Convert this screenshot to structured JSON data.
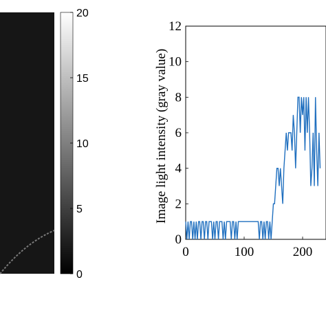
{
  "chart_data": [
    {
      "type": "heatmap",
      "colorbar": {
        "ticks": [
          "20",
          "15",
          "10",
          "5",
          "0"
        ],
        "tick_values": [
          20,
          15,
          10,
          5,
          0
        ],
        "range": [
          0,
          20
        ],
        "colormap": "gray"
      },
      "background_color": "#161616"
    },
    {
      "type": "line",
      "ylabel": "Image light intensity (gray value)",
      "xlabel": "",
      "xlim": [
        0,
        260
      ],
      "ylim": [
        0,
        12
      ],
      "x_ticks": [
        "0",
        "100",
        "200"
      ],
      "x_tick_values": [
        0,
        100,
        200
      ],
      "y_ticks": [
        "0",
        "2",
        "4",
        "6",
        "8",
        "10",
        "12"
      ],
      "y_tick_values": [
        0,
        2,
        4,
        6,
        8,
        10,
        12
      ],
      "line_color": "#1f6fbf",
      "series": [
        {
          "x": [
            0,
            2,
            4,
            6,
            8,
            10,
            12,
            14,
            16,
            18,
            20,
            22,
            24,
            26,
            28,
            30,
            32,
            34,
            36,
            38,
            40,
            42,
            44,
            46,
            48,
            50,
            52,
            54,
            56,
            58,
            60,
            62,
            64,
            66,
            68,
            70,
            72,
            74,
            76,
            78,
            80,
            82,
            84,
            86,
            88,
            90,
            92,
            94,
            96,
            98,
            100,
            102,
            104,
            106,
            108,
            110,
            112,
            114,
            116,
            118,
            120,
            122,
            124,
            126,
            128,
            130,
            132,
            134,
            136,
            138,
            140,
            142,
            144,
            146,
            148,
            150,
            152,
            154,
            156,
            158,
            160,
            162,
            164,
            166,
            168,
            170,
            172,
            174,
            176,
            178,
            180,
            182,
            184,
            186,
            188,
            190,
            192,
            194,
            196,
            198,
            200,
            202,
            204,
            206,
            208,
            210,
            212,
            214,
            216,
            218,
            220,
            222,
            224,
            226,
            228,
            230
          ],
          "values": [
            1,
            0,
            1,
            0,
            1,
            1,
            0,
            1,
            0,
            1,
            0,
            1,
            1,
            0,
            1,
            1,
            0,
            1,
            1,
            0,
            1,
            1,
            1,
            0,
            1,
            0,
            1,
            1,
            0,
            1,
            1,
            1,
            0,
            1,
            0,
            1,
            1,
            1,
            1,
            0,
            1,
            1,
            0,
            1,
            0,
            1,
            1,
            1,
            1,
            1,
            1,
            1,
            1,
            1,
            1,
            1,
            1,
            1,
            1,
            1,
            1,
            1,
            1,
            0,
            1,
            1,
            0,
            1,
            0,
            1,
            1,
            0,
            1,
            0,
            1,
            2,
            2,
            3,
            4,
            4,
            3,
            4,
            3,
            2,
            4,
            5,
            6,
            5,
            6,
            6,
            6,
            5,
            7,
            6,
            4,
            6,
            8,
            8,
            6,
            8,
            7,
            8,
            5,
            8,
            6,
            8,
            6,
            3,
            4,
            6,
            3,
            8,
            5,
            3,
            6,
            4
          ]
        }
      ]
    }
  ]
}
